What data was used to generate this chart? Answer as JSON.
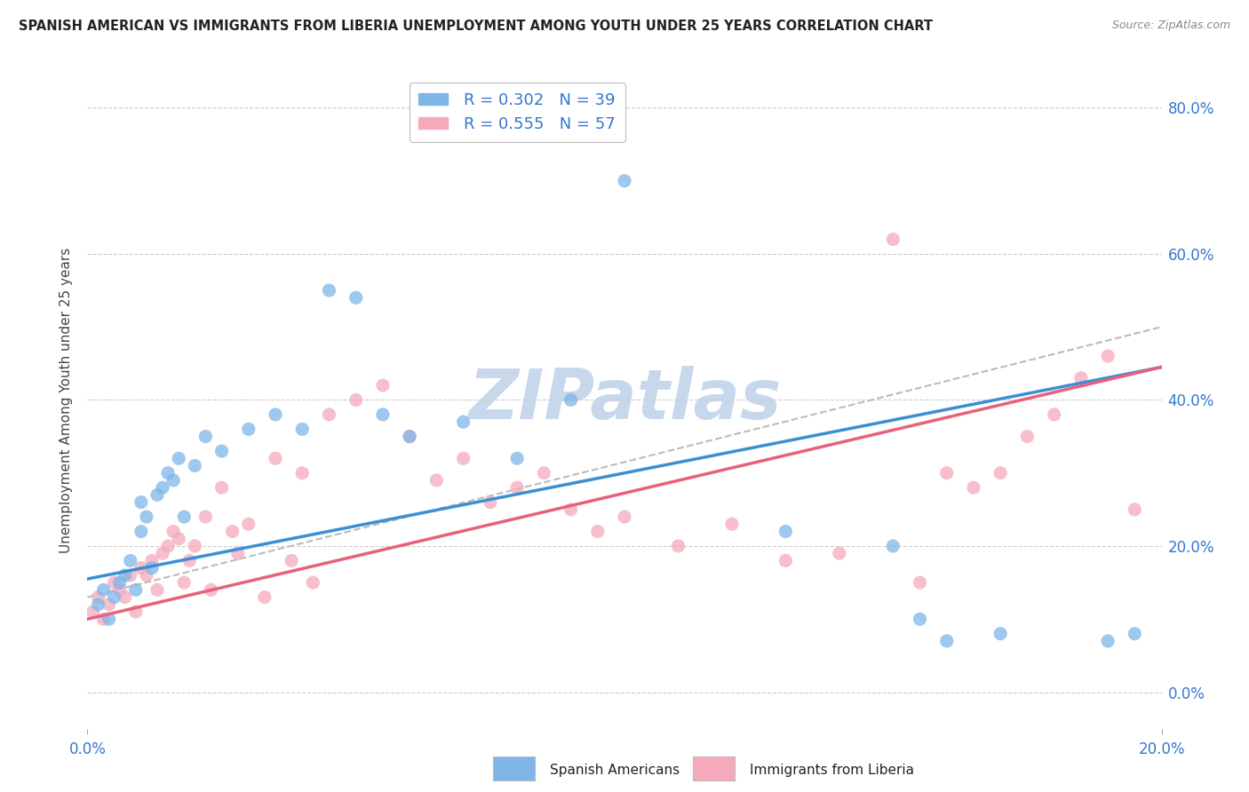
{
  "title": "SPANISH AMERICAN VS IMMIGRANTS FROM LIBERIA UNEMPLOYMENT AMONG YOUTH UNDER 25 YEARS CORRELATION CHART",
  "source": "Source: ZipAtlas.com",
  "ylabel": "Unemployment Among Youth under 25 years",
  "xlim": [
    0.0,
    0.2
  ],
  "ylim": [
    -0.05,
    0.85
  ],
  "r_blue": 0.302,
  "n_blue": 39,
  "r_pink": 0.555,
  "n_pink": 57,
  "blue_color": "#7EB6E8",
  "pink_color": "#F4AABA",
  "blue_line_color": "#3B8FD4",
  "pink_line_color": "#E8607A",
  "gray_line_color": "#BBBBBB",
  "watermark": "ZIPatlas",
  "watermark_color": "#C8D8EC",
  "blue_scatter_x": [
    0.002,
    0.003,
    0.004,
    0.005,
    0.006,
    0.007,
    0.008,
    0.009,
    0.01,
    0.01,
    0.011,
    0.012,
    0.013,
    0.014,
    0.015,
    0.016,
    0.017,
    0.018,
    0.02,
    0.022,
    0.025,
    0.03,
    0.035,
    0.04,
    0.045,
    0.05,
    0.055,
    0.06,
    0.07,
    0.08,
    0.09,
    0.1,
    0.13,
    0.15,
    0.155,
    0.16,
    0.17,
    0.19,
    0.195
  ],
  "blue_scatter_y": [
    0.12,
    0.14,
    0.1,
    0.13,
    0.15,
    0.16,
    0.18,
    0.14,
    0.22,
    0.26,
    0.24,
    0.17,
    0.27,
    0.28,
    0.3,
    0.29,
    0.32,
    0.24,
    0.31,
    0.35,
    0.33,
    0.36,
    0.38,
    0.36,
    0.55,
    0.54,
    0.38,
    0.35,
    0.37,
    0.32,
    0.4,
    0.7,
    0.22,
    0.2,
    0.1,
    0.07,
    0.08,
    0.07,
    0.08
  ],
  "pink_scatter_x": [
    0.001,
    0.002,
    0.003,
    0.004,
    0.005,
    0.006,
    0.007,
    0.008,
    0.009,
    0.01,
    0.011,
    0.012,
    0.013,
    0.014,
    0.015,
    0.016,
    0.017,
    0.018,
    0.019,
    0.02,
    0.022,
    0.023,
    0.025,
    0.027,
    0.028,
    0.03,
    0.033,
    0.035,
    0.038,
    0.04,
    0.042,
    0.045,
    0.05,
    0.055,
    0.06,
    0.065,
    0.07,
    0.075,
    0.08,
    0.085,
    0.09,
    0.095,
    0.1,
    0.11,
    0.12,
    0.13,
    0.14,
    0.15,
    0.155,
    0.16,
    0.165,
    0.17,
    0.175,
    0.18,
    0.185,
    0.19,
    0.195
  ],
  "pink_scatter_y": [
    0.11,
    0.13,
    0.1,
    0.12,
    0.15,
    0.14,
    0.13,
    0.16,
    0.11,
    0.17,
    0.16,
    0.18,
    0.14,
    0.19,
    0.2,
    0.22,
    0.21,
    0.15,
    0.18,
    0.2,
    0.24,
    0.14,
    0.28,
    0.22,
    0.19,
    0.23,
    0.13,
    0.32,
    0.18,
    0.3,
    0.15,
    0.38,
    0.4,
    0.42,
    0.35,
    0.29,
    0.32,
    0.26,
    0.28,
    0.3,
    0.25,
    0.22,
    0.24,
    0.2,
    0.23,
    0.18,
    0.19,
    0.62,
    0.15,
    0.3,
    0.28,
    0.3,
    0.35,
    0.38,
    0.43,
    0.46,
    0.25
  ],
  "legend_label_blue": "R = 0.302   N = 39",
  "legend_label_pink": "R = 0.555   N = 57",
  "blue_line_x0": 0.0,
  "blue_line_y0": 0.155,
  "blue_line_x1": 0.2,
  "blue_line_y1": 0.445,
  "pink_line_x0": 0.0,
  "pink_line_y0": 0.1,
  "pink_line_x1": 0.2,
  "pink_line_y1": 0.445,
  "gray_line_x0": 0.0,
  "gray_line_y0": 0.13,
  "gray_line_x1": 0.2,
  "gray_line_y1": 0.5
}
